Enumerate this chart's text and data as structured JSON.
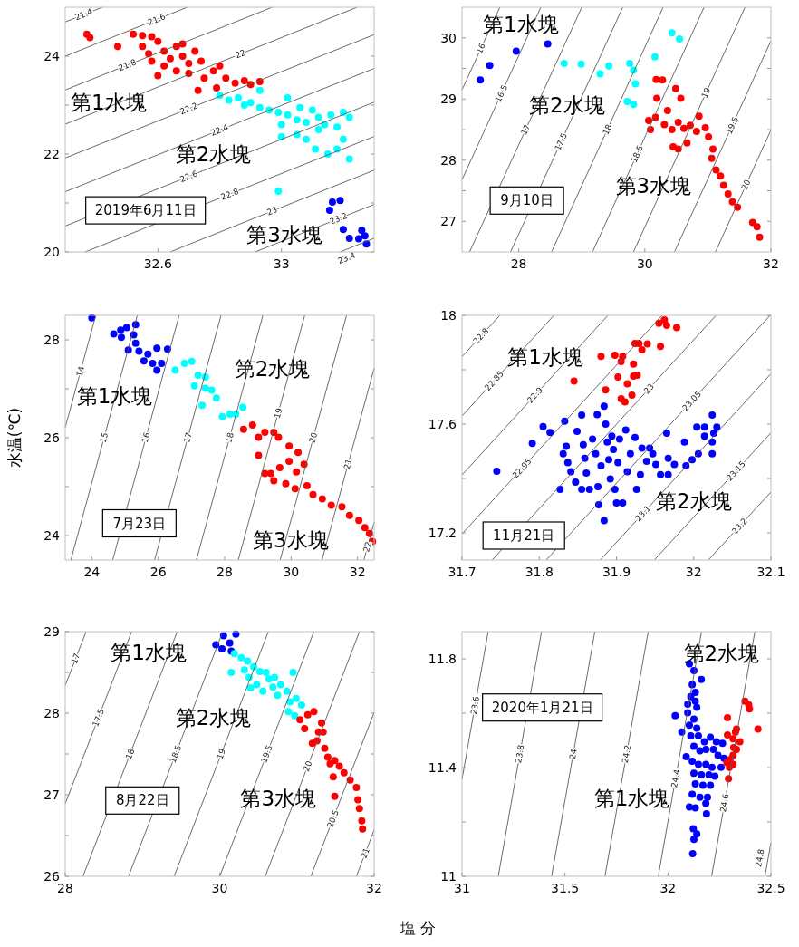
{
  "chart_data": [
    {
      "type": "scatter",
      "title": "2019年6月11日",
      "xlim": [
        32.3,
        33.3
      ],
      "ylim": [
        20,
        25
      ],
      "xticks": [
        32.6,
        33
      ],
      "yticks": [
        20,
        {
          "value": 21,
          "label": null
        },
        22,
        {
          "value": 23,
          "label": null
        },
        24
      ],
      "annotations": [
        "第1水塊",
        "第2水塊",
        "第3水塊"
      ],
      "series": [
        {
          "type": "line",
          "name": "21.4",
          "color": "#595959",
          "x": [
            32.3,
            32.42
          ],
          "values": [
            24.7,
            25
          ]
        },
        {
          "type": "line",
          "name": "21.6",
          "color": "#595959",
          "x": [
            32.3,
            32.695
          ],
          "values": [
            24.0,
            25
          ]
        },
        {
          "type": "line",
          "name": "21.8",
          "color": "#595959",
          "x": [
            32.3,
            32.97
          ],
          "values": [
            23.31,
            25
          ]
        },
        {
          "type": "line",
          "name": "22",
          "color": "#595959",
          "x": [
            32.3,
            33.245
          ],
          "values": [
            22.61,
            25
          ]
        },
        {
          "type": "line",
          "name": "22.2",
          "color": "#595959",
          "x": [
            32.3,
            33.3
          ],
          "values": [
            21.92,
            24.44
          ]
        },
        {
          "type": "line",
          "name": "22.4",
          "color": "#595959",
          "x": [
            32.3,
            33.3
          ],
          "values": [
            21.23,
            23.75
          ]
        },
        {
          "type": "line",
          "name": "22.6",
          "color": "#595959",
          "x": [
            32.3,
            33.3
          ],
          "values": [
            20.53,
            23.06
          ]
        },
        {
          "type": "line",
          "name": "22.8",
          "color": "#595959",
          "x": [
            32.365,
            33.3
          ],
          "values": [
            20,
            22.36
          ]
        },
        {
          "type": "line",
          "name": "23",
          "color": "#595959",
          "x": [
            32.64,
            33.3
          ],
          "values": [
            20,
            21.67
          ]
        },
        {
          "type": "line",
          "name": "23.2",
          "color": "#595959",
          "x": [
            32.915,
            33.3
          ],
          "values": [
            20,
            20.97
          ]
        },
        {
          "type": "line",
          "name": "23.4",
          "color": "#595959",
          "x": [
            33.19,
            33.3
          ],
          "values": [
            20,
            20.28
          ]
        },
        {
          "marker": "circle",
          "color": "#ff0000",
          "x": [
            32.37,
            32.38,
            32.47,
            32.52,
            32.55,
            32.58,
            32.55,
            32.57,
            32.6,
            32.62,
            32.64,
            32.66,
            32.68,
            32.7,
            32.72,
            32.74,
            32.62,
            32.66,
            32.7,
            32.75,
            32.78,
            32.8,
            32.82,
            32.85,
            32.88,
            32.9,
            32.93,
            32.79,
            32.73,
            32.58,
            32.6,
            32.68
          ],
          "values": [
            24.45,
            24.38,
            24.2,
            24.45,
            24.42,
            24.4,
            24.2,
            24.05,
            24.3,
            24.1,
            23.95,
            24.2,
            24.0,
            23.85,
            24.1,
            23.9,
            23.8,
            23.7,
            23.65,
            23.55,
            23.7,
            23.8,
            23.55,
            23.45,
            23.5,
            23.42,
            23.48,
            23.35,
            23.3,
            23.9,
            23.6,
            24.25
          ]
        },
        {
          "marker": "circle",
          "color": "#00ffff",
          "x": [
            32.8,
            32.83,
            32.86,
            32.9,
            32.93,
            32.96,
            32.99,
            33.02,
            33.05,
            33.08,
            33.1,
            33.12,
            33.14,
            33.05,
            33.0,
            33.08,
            33.11,
            33.15,
            33.18,
            33.2,
            33.22,
            33.18,
            33.2,
            33.22,
            33.16,
            33.02,
            32.93,
            32.99,
            33.0,
            33.12,
            32.88,
            33.06
          ],
          "values": [
            23.2,
            23.1,
            23.15,
            23.05,
            22.95,
            22.9,
            22.85,
            22.8,
            22.7,
            22.65,
            22.9,
            22.5,
            22.6,
            22.4,
            22.35,
            22.3,
            22.1,
            22.0,
            22.1,
            22.3,
            21.9,
            22.55,
            22.85,
            22.75,
            22.8,
            23.15,
            23.3,
            21.24,
            22.6,
            22.75,
            23.0,
            22.95
          ]
        },
        {
          "marker": "circle",
          "color": "#0000ff",
          "x": [
            33.165,
            33.19,
            33.156,
            33.2,
            33.22,
            33.26,
            33.25,
            33.27,
            33.275
          ],
          "values": [
            21.02,
            21.05,
            20.85,
            20.46,
            20.28,
            20.44,
            20.27,
            20.33,
            20.16
          ]
        }
      ]
    },
    {
      "type": "scatter",
      "title": "9月10日",
      "xlim": [
        27.1,
        32
      ],
      "ylim": [
        26.5,
        30.5
      ],
      "xticks": [
        28,
        30,
        32
      ],
      "yticks": [
        27,
        {
          "value": 27.5,
          "label": null
        },
        28,
        {
          "value": 28.5,
          "label": null
        },
        29,
        {
          "value": 29.5,
          "label": null
        },
        30
      ],
      "annotations": [
        "第1水塊",
        "第2水塊",
        "第3水塊"
      ],
      "series": [
        {
          "type": "line",
          "name": "16",
          "color": "#595959",
          "x": [
            27.1,
            27.7
          ],
          "values": [
            29.15,
            30.5
          ]
        },
        {
          "type": "line",
          "name": "16.5",
          "color": "#595959",
          "x": [
            27.1,
            28.35
          ],
          "values": [
            27.68,
            30.5
          ]
        },
        {
          "type": "line",
          "name": "17",
          "color": "#595959",
          "x": [
            27.22,
            29.0
          ],
          "values": [
            26.5,
            30.5
          ]
        },
        {
          "type": "line",
          "name": "17.5",
          "color": "#595959",
          "x": [
            27.87,
            29.65
          ],
          "values": [
            26.5,
            30.5
          ]
        },
        {
          "type": "line",
          "name": "18",
          "color": "#595959",
          "x": [
            28.52,
            30.29
          ],
          "values": [
            26.5,
            30.5
          ]
        },
        {
          "type": "line",
          "name": "18.5",
          "color": "#595959",
          "x": [
            29.17,
            30.94
          ],
          "values": [
            26.5,
            30.5
          ]
        },
        {
          "type": "line",
          "name": "19",
          "color": "#595959",
          "x": [
            29.82,
            31.59
          ],
          "values": [
            26.5,
            30.5
          ]
        },
        {
          "type": "line",
          "name": "19.5",
          "color": "#595959",
          "x": [
            30.47,
            32
          ],
          "values": [
            26.5,
            29.95
          ]
        },
        {
          "type": "line",
          "name": "20",
          "color": "#595959",
          "x": [
            31.12,
            32
          ],
          "values": [
            26.5,
            28.49
          ]
        },
        {
          "marker": "circle",
          "color": "#0000ff",
          "x": [
            27.39,
            27.54,
            27.96,
            28.46
          ],
          "values": [
            29.31,
            29.55,
            29.78,
            29.9
          ]
        },
        {
          "marker": "circle",
          "color": "#00ffff",
          "x": [
            28.72,
            28.99,
            29.29,
            29.43,
            29.76,
            29.82,
            29.85,
            29.72,
            29.82,
            30.16,
            30.43,
            30.55
          ],
          "values": [
            29.58,
            29.57,
            29.41,
            29.54,
            29.58,
            29.47,
            29.25,
            28.96,
            28.91,
            29.69,
            30.08,
            29.98
          ]
        },
        {
          "marker": "circle",
          "color": "#ff0000",
          "x": [
            30.18,
            30.28,
            30.49,
            30.19,
            30.57,
            30.36,
            30.06,
            30.17,
            30.09,
            30.31,
            30.43,
            30.53,
            30.62,
            30.72,
            30.86,
            30.82,
            30.96,
            30.45,
            30.53,
            30.67,
            31.01,
            31.08,
            31.06,
            31.13,
            31.2,
            31.25,
            31.32,
            31.39,
            31.47,
            31.71,
            31.78,
            31.82
          ],
          "values": [
            29.32,
            29.31,
            29.17,
            29.01,
            29.01,
            28.81,
            28.65,
            28.7,
            28.5,
            28.58,
            28.5,
            28.62,
            28.52,
            28.57,
            28.72,
            28.47,
            28.53,
            28.22,
            28.18,
            28.28,
            28.38,
            28.18,
            28.03,
            27.84,
            27.74,
            27.59,
            27.45,
            27.32,
            27.23,
            26.98,
            26.91,
            26.74
          ]
        }
      ]
    },
    {
      "type": "scatter",
      "title": "7月23日",
      "ylabel": "水温(℃)",
      "xlim": [
        23.2,
        32.5
      ],
      "ylim": [
        23.5,
        28.5
      ],
      "xticks": [
        24,
        26,
        28,
        30,
        32
      ],
      "yticks": [
        24,
        {
          "value": 25,
          "label": null
        },
        26,
        {
          "value": 27,
          "label": null
        },
        28
      ],
      "annotations": [
        "第1水塊",
        "第2水塊",
        "第3水塊"
      ],
      "series": [
        {
          "type": "line",
          "name": "14",
          "color": "#595959",
          "x": [
            23.2,
            24.12
          ],
          "values": [
            26.21,
            28.5
          ]
        },
        {
          "type": "line",
          "name": "15",
          "color": "#595959",
          "x": [
            23.37,
            25.37
          ],
          "values": [
            23.5,
            28.5
          ]
        },
        {
          "type": "line",
          "name": "16",
          "color": "#595959",
          "x": [
            24.63,
            26.63
          ],
          "values": [
            23.5,
            28.5
          ]
        },
        {
          "type": "line",
          "name": "17",
          "color": "#595959",
          "x": [
            25.89,
            27.89
          ],
          "values": [
            23.5,
            28.5
          ]
        },
        {
          "type": "line",
          "name": "18",
          "color": "#595959",
          "x": [
            27.15,
            29.15
          ],
          "values": [
            23.5,
            28.5
          ]
        },
        {
          "type": "line",
          "name": "19",
          "color": "#595959",
          "x": [
            28.41,
            30.41
          ],
          "values": [
            23.5,
            28.5
          ]
        },
        {
          "type": "line",
          "name": "20",
          "color": "#595959",
          "x": [
            29.67,
            31.67
          ],
          "values": [
            23.5,
            28.5
          ]
        },
        {
          "type": "line",
          "name": "21",
          "color": "#595959",
          "x": [
            30.93,
            32.5
          ],
          "values": [
            23.5,
            27.42
          ]
        },
        {
          "type": "line",
          "name": "22",
          "color": "#595959",
          "x": [
            32.19,
            32.5
          ],
          "values": [
            23.5,
            24.27
          ]
        },
        {
          "marker": "circle",
          "color": "#0000ff",
          "x": [
            24.0,
            24.66,
            24.87,
            25.05,
            25.32,
            24.89,
            25.26,
            25.32,
            25.1,
            25.42,
            25.69,
            25.57,
            25.83,
            25.96,
            26.1,
            25.96,
            26.28
          ],
          "values": [
            28.45,
            28.12,
            28.2,
            28.25,
            28.31,
            28.05,
            28.1,
            27.93,
            27.79,
            27.77,
            27.71,
            27.57,
            27.52,
            27.38,
            27.52,
            27.83,
            27.81
          ]
        },
        {
          "marker": "circle",
          "color": "#00ffff",
          "x": [
            26.51,
            26.79,
            27.01,
            27.2,
            27.42,
            27.09,
            27.42,
            27.61,
            27.75,
            27.32,
            27.93,
            28.16,
            28.34,
            28.55
          ],
          "values": [
            27.38,
            27.52,
            27.56,
            27.28,
            27.24,
            27.06,
            27.01,
            26.97,
            26.81,
            26.66,
            26.43,
            26.48,
            26.48,
            26.62
          ]
        },
        {
          "marker": "circle",
          "color": "#ff0000",
          "x": [
            28.57,
            28.84,
            29.02,
            29.21,
            29.48,
            29.62,
            29.94,
            30.21,
            30.39,
            29.02,
            29.21,
            29.39,
            29.66,
            29.94,
            30.16,
            29.48,
            29.84,
            30.12,
            30.48,
            30.66,
            30.94,
            31.21,
            31.53,
            31.76,
            32.04,
            32.22,
            32.36,
            32.45
          ],
          "values": [
            26.17,
            26.26,
            26.01,
            26.11,
            26.11,
            26.01,
            25.83,
            25.7,
            25.46,
            25.64,
            25.27,
            25.27,
            25.39,
            25.52,
            25.3,
            25.12,
            25.06,
            24.96,
            25.02,
            24.84,
            24.75,
            24.62,
            24.59,
            24.41,
            24.31,
            24.16,
            24.04,
            23.88
          ]
        }
      ]
    },
    {
      "type": "scatter",
      "title": "11月21日",
      "xlim": [
        31.7,
        32.1
      ],
      "ylim": [
        17.1,
        18
      ],
      "xticks": [
        31.7,
        31.8,
        31.9,
        32,
        32.1
      ],
      "yticks": [
        17.2,
        {
          "value": 17.4,
          "label": null
        },
        17.6,
        {
          "value": 17.8,
          "label": null
        },
        18
      ],
      "annotations": [
        "第1水塊",
        "第2水塊"
      ],
      "series": [
        {
          "type": "line",
          "name": "22.8",
          "color": "#595959",
          "x": [
            31.7,
            31.749
          ],
          "values": [
            17.848,
            18
          ]
        },
        {
          "type": "line",
          "name": "22.85",
          "color": "#595959",
          "x": [
            31.7,
            31.819
          ],
          "values": [
            17.63,
            18
          ]
        },
        {
          "type": "line",
          "name": "22.9",
          "color": "#595959",
          "x": [
            31.7,
            31.889
          ],
          "values": [
            17.413,
            18
          ]
        },
        {
          "type": "line",
          "name": "22.95",
          "color": "#595959",
          "x": [
            31.7,
            31.959
          ],
          "values": [
            17.196,
            18
          ]
        },
        {
          "type": "line",
          "name": "23",
          "color": "#595959",
          "x": [
            31.739,
            32.029
          ],
          "values": [
            17.1,
            18
          ]
        },
        {
          "type": "line",
          "name": "23.05",
          "color": "#595959",
          "x": [
            31.809,
            32.099
          ],
          "values": [
            17.1,
            18
          ]
        },
        {
          "type": "line",
          "name": "23.1",
          "color": "#595959",
          "x": [
            31.879,
            32.1
          ],
          "values": [
            17.1,
            17.785
          ]
        },
        {
          "type": "line",
          "name": "23.15",
          "color": "#595959",
          "x": [
            31.949,
            32.1
          ],
          "values": [
            17.1,
            17.568
          ]
        },
        {
          "type": "line",
          "name": "23.2",
          "color": "#595959",
          "x": [
            32.019,
            32.1
          ],
          "values": [
            17.1,
            17.35
          ]
        },
        {
          "marker": "circle",
          "color": "#ff0000",
          "x": [
            31.845,
            31.88,
            31.898,
            31.908,
            31.906,
            31.886,
            31.902,
            31.906,
            31.911,
            31.914,
            31.922,
            31.927,
            31.922,
            31.92,
            31.924,
            31.929,
            31.933,
            31.94,
            31.957,
            31.955,
            31.962,
            31.965,
            31.978
          ],
          "values": [
            17.758,
            17.849,
            17.853,
            17.849,
            17.83,
            17.726,
            17.773,
            17.693,
            17.682,
            17.748,
            17.777,
            17.78,
            17.821,
            17.707,
            17.897,
            17.897,
            17.873,
            17.895,
            17.886,
            17.971,
            17.983,
            17.963,
            17.955
          ]
        },
        {
          "marker": "circle",
          "color": "#0000ff",
          "x": [
            31.745,
            31.791,
            31.805,
            31.814,
            31.827,
            31.833,
            31.835,
            31.837,
            31.847,
            31.849,
            31.855,
            31.857,
            31.859,
            31.861,
            31.865,
            31.869,
            31.873,
            31.875,
            31.876,
            31.877,
            31.88,
            31.884,
            31.884,
            31.886,
            31.888,
            31.89,
            31.892,
            31.894,
            31.896,
            31.898,
            31.9,
            31.902,
            31.904,
            31.908,
            31.912,
            31.914,
            31.918,
            31.924,
            31.926,
            31.931,
            31.933,
            31.939,
            31.943,
            31.947,
            31.951,
            31.957,
            31.965,
            31.967,
            31.967,
            31.975,
            31.988,
            31.99,
            31.998,
            32.004,
            32.006,
            32.014,
            32.014,
            32.024,
            32.024,
            32.024,
            32.026,
            32.03,
            31.831,
            31.841,
            31.855
          ],
          "values": [
            17.427,
            17.529,
            17.591,
            17.569,
            17.36,
            17.611,
            17.518,
            17.458,
            17.387,
            17.573,
            17.633,
            17.524,
            17.474,
            17.42,
            17.36,
            17.545,
            17.491,
            17.635,
            17.37,
            17.303,
            17.447,
            17.245,
            17.666,
            17.6,
            17.534,
            17.469,
            17.398,
            17.556,
            17.507,
            17.36,
            17.31,
            17.458,
            17.545,
            17.31,
            17.578,
            17.425,
            17.491,
            17.551,
            17.36,
            17.414,
            17.512,
            17.463,
            17.512,
            17.491,
            17.452,
            17.414,
            17.567,
            17.474,
            17.414,
            17.452,
            17.534,
            17.447,
            17.469,
            17.589,
            17.491,
            17.589,
            17.556,
            17.633,
            17.534,
            17.491,
            17.567,
            17.589,
            17.491,
            17.425,
            17.36
          ]
        }
      ]
    },
    {
      "type": "scatter",
      "title": "8月22日",
      "xlabel": "塩 分",
      "xlim": [
        28,
        32
      ],
      "ylim": [
        26,
        29
      ],
      "xticks": [
        28,
        30,
        32
      ],
      "yticks": [
        26,
        {
          "value": 26.5,
          "label": null
        },
        27,
        {
          "value": 27.5,
          "label": null
        },
        28,
        {
          "value": 28.5,
          "label": null
        },
        29
      ],
      "annotations": [
        "第1水塊",
        "第2水塊",
        "第3水塊"
      ],
      "series": [
        {
          "type": "line",
          "name": "17",
          "color": "#595959",
          "x": [
            28,
            28.27
          ],
          "values": [
            28.34,
            29
          ]
        },
        {
          "type": "line",
          "name": "17.5",
          "color": "#595959",
          "x": [
            28,
            28.86
          ],
          "values": [
            26.89,
            29
          ]
        },
        {
          "type": "line",
          "name": "18",
          "color": "#595959",
          "x": [
            28.23,
            29.45
          ],
          "values": [
            26,
            29
          ]
        },
        {
          "type": "line",
          "name": "18.5",
          "color": "#595959",
          "x": [
            28.82,
            30.04
          ],
          "values": [
            26,
            29
          ]
        },
        {
          "type": "line",
          "name": "19",
          "color": "#595959",
          "x": [
            29.41,
            30.63
          ],
          "values": [
            26,
            29
          ]
        },
        {
          "type": "line",
          "name": "19.5",
          "color": "#595959",
          "x": [
            30.0,
            31.22
          ],
          "values": [
            26,
            29
          ]
        },
        {
          "type": "line",
          "name": "20",
          "color": "#595959",
          "x": [
            30.59,
            31.81
          ],
          "values": [
            26,
            29
          ]
        },
        {
          "type": "line",
          "name": "20.5",
          "color": "#595959",
          "x": [
            31.18,
            32
          ],
          "values": [
            26,
            28.01
          ]
        },
        {
          "type": "line",
          "name": "21",
          "color": "#595959",
          "x": [
            31.77,
            32
          ],
          "values": [
            26,
            26.57
          ]
        },
        {
          "marker": "circle",
          "color": "#0000ff",
          "x": [
            29.95,
            30.05,
            30.13,
            30.21,
            30.03,
            30.15
          ],
          "values": [
            28.84,
            28.95,
            28.86,
            28.97,
            28.79,
            28.76
          ]
        },
        {
          "marker": "circle",
          "color": "#00ffff",
          "x": [
            30.19,
            30.28,
            30.36,
            30.15,
            30.32,
            30.44,
            30.38,
            30.52,
            30.6,
            30.48,
            30.64,
            30.71,
            30.56,
            30.69,
            30.79,
            30.75,
            30.87,
            30.95,
            30.91,
            30.99,
            30.89,
            31.06,
            30.97,
            30.4
          ],
          "values": [
            28.73,
            28.68,
            28.64,
            28.5,
            28.53,
            28.57,
            28.44,
            28.51,
            28.5,
            28.35,
            28.42,
            28.44,
            28.27,
            28.32,
            28.35,
            28.22,
            28.27,
            28.5,
            28.14,
            28.18,
            28.02,
            28.1,
            27.97,
            28.31
          ]
        },
        {
          "marker": "circle",
          "color": "#ff0000",
          "x": [
            31.04,
            31.1,
            31.14,
            31.22,
            31.2,
            31.28,
            31.32,
            31.34,
            31.26,
            31.36,
            31.4,
            31.43,
            31.49,
            31.47,
            31.55,
            31.61,
            31.69,
            31.77,
            31.49,
            31.79,
            31.81,
            31.84,
            31.85
          ],
          "values": [
            27.92,
            27.81,
            27.98,
            28.02,
            27.63,
            27.77,
            27.88,
            27.77,
            27.66,
            27.57,
            27.46,
            27.38,
            27.42,
            27.22,
            27.35,
            27.27,
            27.18,
            27.09,
            26.98,
            26.94,
            26.83,
            26.68,
            26.58
          ]
        }
      ]
    },
    {
      "type": "scatter",
      "title": "2020年1月21日",
      "xlim": [
        31,
        32.5
      ],
      "ylim": [
        11,
        11.9
      ],
      "xticks": [
        31,
        31.5,
        32,
        32.5
      ],
      "yticks": [
        11,
        {
          "value": 11.2,
          "label": null
        },
        11.4,
        {
          "value": 11.6,
          "label": null
        },
        11.8
      ],
      "annotations": [
        "第2水塊",
        "第1水塊"
      ],
      "series": [
        {
          "type": "line",
          "name": "23.6",
          "color": "#595959",
          "x": [
            31,
            31.127
          ],
          "values": [
            11.357,
            11.9
          ]
        },
        {
          "type": "line",
          "name": "23.8",
          "color": "#595959",
          "x": [
            31.176,
            31.386
          ],
          "values": [
            11,
            11.9
          ]
        },
        {
          "type": "line",
          "name": "24",
          "color": "#595959",
          "x": [
            31.435,
            31.645
          ],
          "values": [
            11,
            11.9
          ]
        },
        {
          "type": "line",
          "name": "24.2",
          "color": "#595959",
          "x": [
            31.694,
            31.904
          ],
          "values": [
            11,
            11.9
          ]
        },
        {
          "type": "line",
          "name": "24.4",
          "color": "#595959",
          "x": [
            31.953,
            32.163
          ],
          "values": [
            11,
            11.9
          ]
        },
        {
          "type": "line",
          "name": "24.6",
          "color": "#595959",
          "x": [
            32.212,
            32.422
          ],
          "values": [
            11,
            11.9
          ]
        },
        {
          "type": "line",
          "name": "24.8",
          "color": "#595959",
          "x": [
            32.471,
            32.5
          ],
          "values": [
            11,
            11.124
          ]
        },
        {
          "marker": "circle",
          "color": "#0000ff",
          "x": [
            32.104,
            32.126,
            32.162,
            32.118,
            32.133,
            32.111,
            32.133,
            32.096,
            32.14,
            32.035,
            32.096,
            32.126,
            32.104,
            32.14,
            32.067,
            32.111,
            32.148,
            32.177,
            32.206,
            32.235,
            32.265,
            32.126,
            32.155,
            32.184,
            32.221,
            32.243,
            32.272,
            32.089,
            32.118,
            32.148,
            32.184,
            32.214,
            32.258,
            32.126,
            32.162,
            32.199,
            32.228,
            32.133,
            32.17,
            32.206,
            32.118,
            32.155,
            32.192,
            32.104,
            32.133,
            32.184,
            32.187,
            32.123,
            32.14,
            32.126,
            32.12
          ],
          "values": [
            11.782,
            11.757,
            11.724,
            11.705,
            11.677,
            11.661,
            11.644,
            11.633,
            11.622,
            11.591,
            11.602,
            11.578,
            11.556,
            11.545,
            11.531,
            11.517,
            11.517,
            11.495,
            11.512,
            11.495,
            11.489,
            11.478,
            11.462,
            11.467,
            11.467,
            11.445,
            11.434,
            11.44,
            11.423,
            11.412,
            11.412,
            11.401,
            11.401,
            11.379,
            11.373,
            11.373,
            11.368,
            11.34,
            11.335,
            11.335,
            11.302,
            11.291,
            11.291,
            11.255,
            11.252,
            11.268,
            11.23,
            11.175,
            11.156,
            11.136,
            11.083
          ]
        },
        {
          "marker": "circle",
          "color": "#ff0000",
          "x": [
            32.374,
            32.392,
            32.396,
            32.289,
            32.333,
            32.328,
            32.437,
            32.289,
            32.316,
            32.349,
            32.319,
            32.333,
            32.316,
            32.301,
            32.286,
            32.298,
            32.316,
            32.294
          ],
          "values": [
            11.644,
            11.631,
            11.616,
            11.583,
            11.542,
            11.531,
            11.542,
            11.52,
            11.506,
            11.495,
            11.473,
            11.467,
            11.445,
            11.429,
            11.418,
            11.401,
            11.412,
            11.359
          ]
        }
      ]
    }
  ]
}
